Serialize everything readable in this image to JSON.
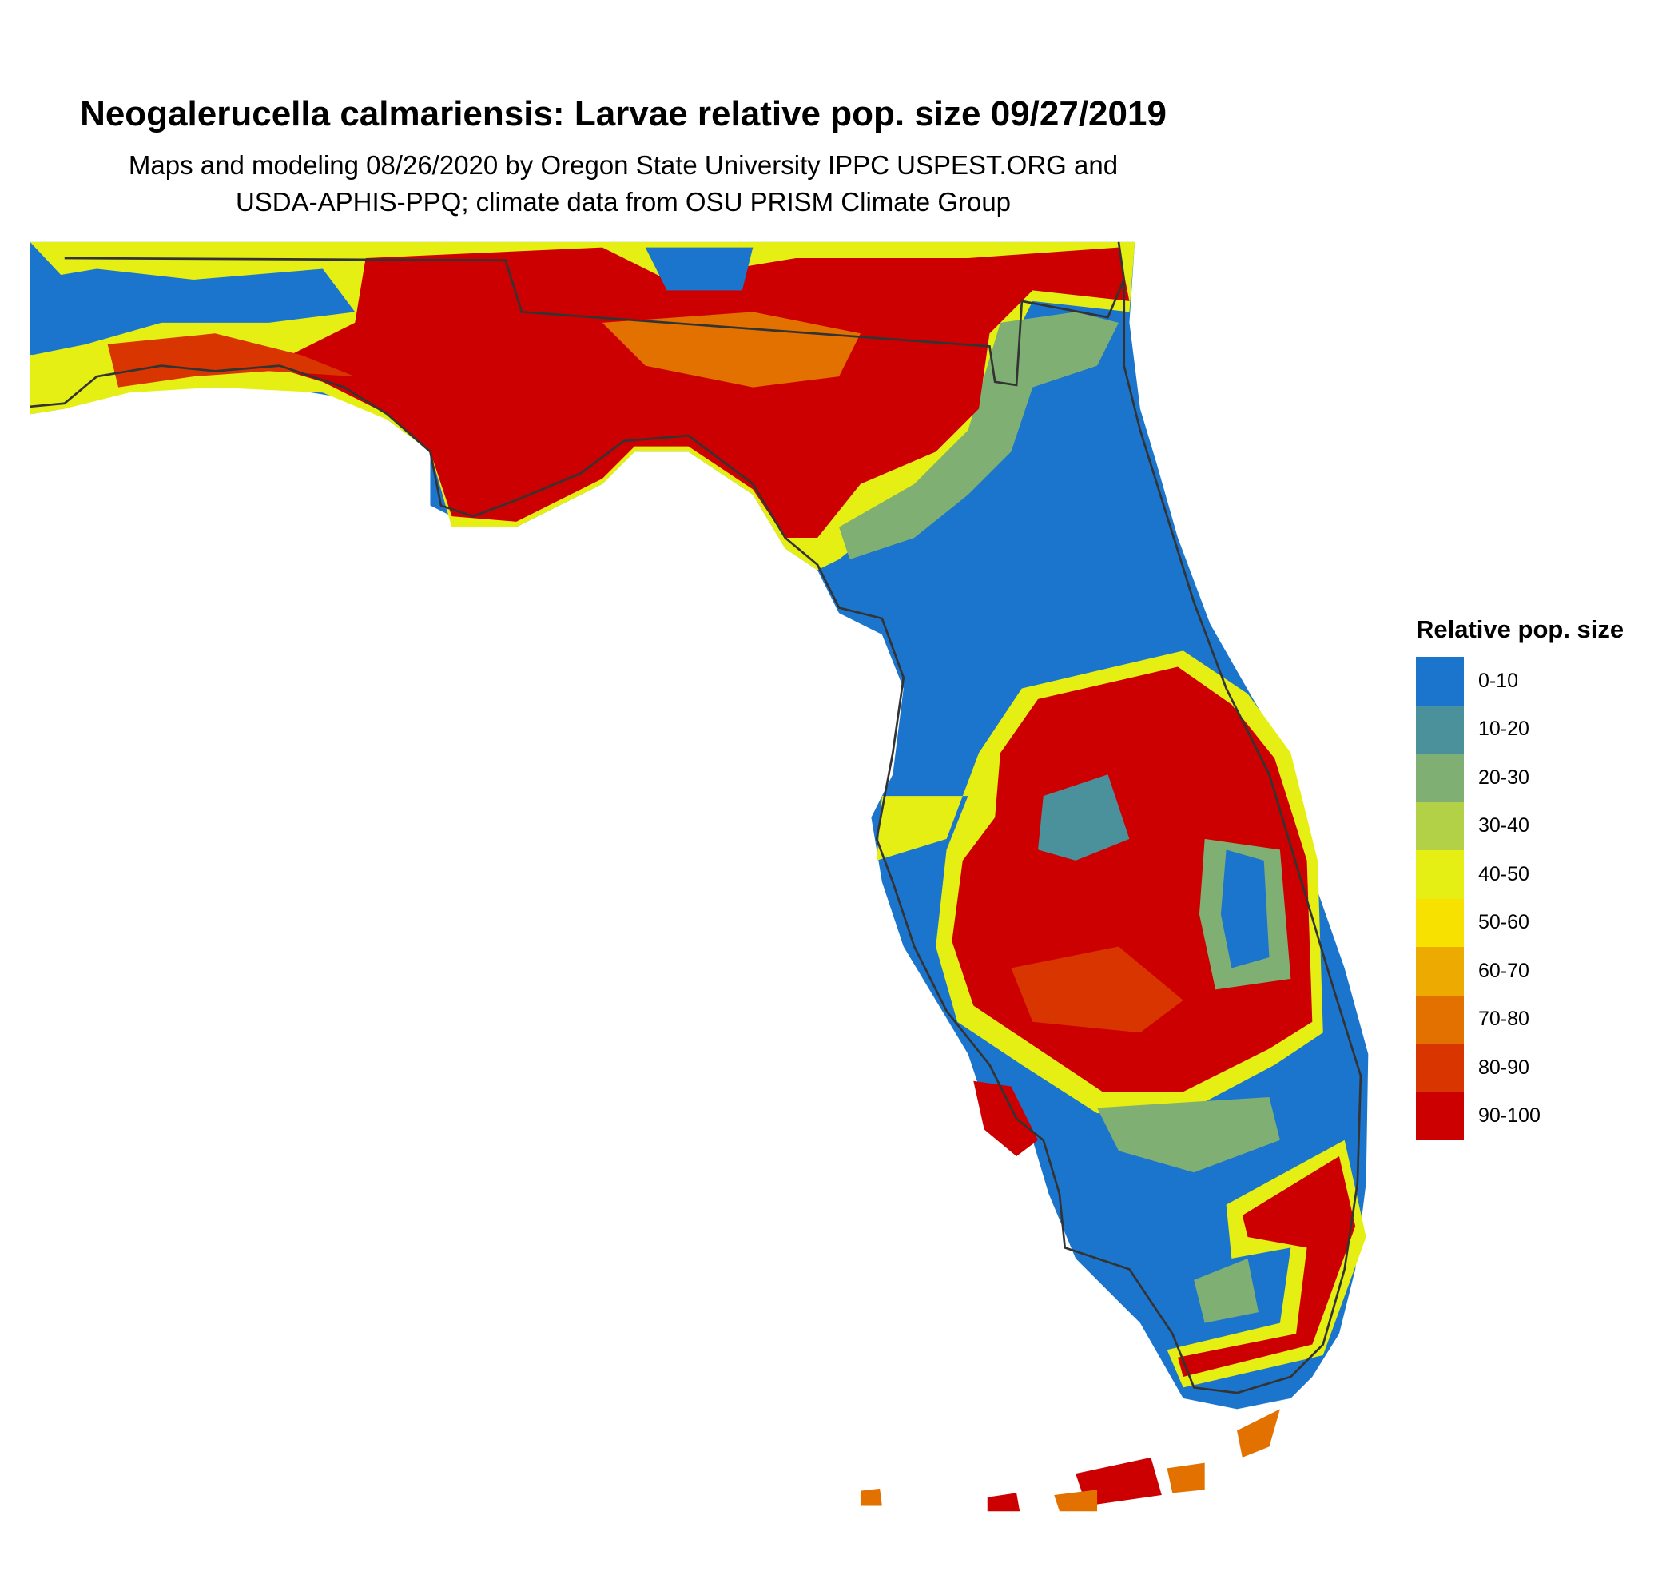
{
  "title": "Neogalerucella calmariensis: Larvae relative pop. size 09/27/2019",
  "subtitle_line1": "Maps and modeling 08/26/2020 by Oregon State University IPPC USPEST.ORG and",
  "subtitle_line2": "USDA-APHIS-PPQ; climate data from OSU PRISM Climate Group",
  "legend": {
    "title": "Relative pop. size",
    "items": [
      {
        "label": "0-10",
        "color": "#1c75cd"
      },
      {
        "label": "10-20",
        "color": "#4a919b"
      },
      {
        "label": "20-30",
        "color": "#7faf72"
      },
      {
        "label": "30-40",
        "color": "#b2d146"
      },
      {
        "label": "40-50",
        "color": "#e5ef14"
      },
      {
        "label": "50-60",
        "color": "#f7e100"
      },
      {
        "label": "60-70",
        "color": "#edaa00"
      },
      {
        "label": "70-80",
        "color": "#e27100"
      },
      {
        "label": "80-90",
        "color": "#d93500"
      },
      {
        "label": "90-100",
        "color": "#cc0000"
      }
    ]
  }
}
